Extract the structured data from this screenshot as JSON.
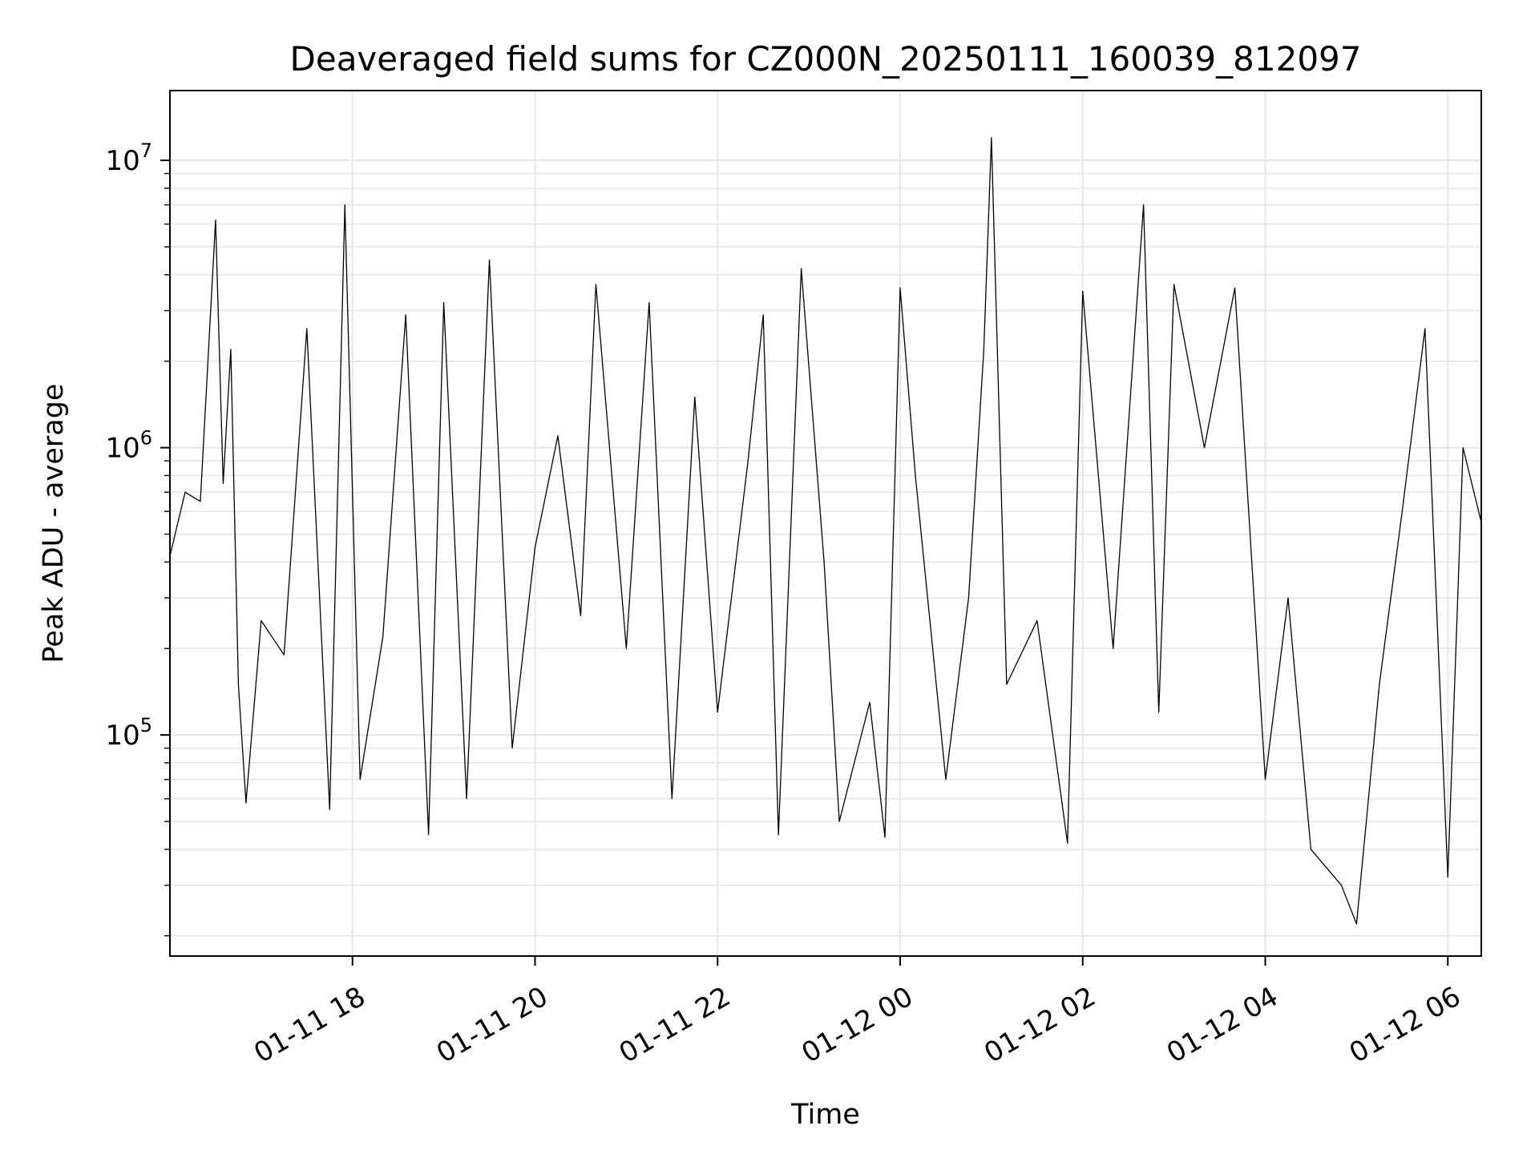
{
  "chart_data": {
    "type": "line",
    "title": "Deaveraged field sums for CZ000N_20250111_160039_812097",
    "xlabel": "Time",
    "ylabel": "Peak ADU - average",
    "yscale": "log",
    "xlim": [
      "2025-01-11 16:00",
      "2025-01-12 06:22"
    ],
    "ylim": [
      17000,
      17500000
    ],
    "grid": true,
    "x_ticks": [
      {
        "time": "2025-01-11 18:00",
        "label": "01-11 18"
      },
      {
        "time": "2025-01-11 20:00",
        "label": "01-11 20"
      },
      {
        "time": "2025-01-11 22:00",
        "label": "01-11 22"
      },
      {
        "time": "2025-01-12 00:00",
        "label": "01-12 00"
      },
      {
        "time": "2025-01-12 02:00",
        "label": "01-12 02"
      },
      {
        "time": "2025-01-12 04:00",
        "label": "01-12 04"
      },
      {
        "time": "2025-01-12 06:00",
        "label": "01-12 06"
      }
    ],
    "y_ticks": [
      {
        "value": 100000,
        "base": "10",
        "exp": "5"
      },
      {
        "value": 1000000,
        "base": "10",
        "exp": "6"
      },
      {
        "value": 10000000,
        "base": "10",
        "exp": "7"
      }
    ],
    "series": [
      {
        "line_color": "#000000",
        "points": [
          [
            "2025-01-11 16:00",
            420000
          ],
          [
            "2025-01-11 16:10",
            700000
          ],
          [
            "2025-01-11 16:20",
            650000
          ],
          [
            "2025-01-11 16:30",
            6200000
          ],
          [
            "2025-01-11 16:35",
            750000
          ],
          [
            "2025-01-11 16:40",
            2200000
          ],
          [
            "2025-01-11 16:45",
            150000
          ],
          [
            "2025-01-11 16:50",
            58000
          ],
          [
            "2025-01-11 17:00",
            250000
          ],
          [
            "2025-01-11 17:15",
            190000
          ],
          [
            "2025-01-11 17:30",
            2600000
          ],
          [
            "2025-01-11 17:45",
            55000
          ],
          [
            "2025-01-11 17:55",
            7000000
          ],
          [
            "2025-01-11 18:05",
            70000
          ],
          [
            "2025-01-11 18:20",
            220000
          ],
          [
            "2025-01-11 18:35",
            2900000
          ],
          [
            "2025-01-11 18:50",
            45000
          ],
          [
            "2025-01-11 19:00",
            3200000
          ],
          [
            "2025-01-11 19:15",
            60000
          ],
          [
            "2025-01-11 19:30",
            4500000
          ],
          [
            "2025-01-11 19:45",
            90000
          ],
          [
            "2025-01-11 20:00",
            450000
          ],
          [
            "2025-01-11 20:15",
            1100000
          ],
          [
            "2025-01-11 20:30",
            260000
          ],
          [
            "2025-01-11 20:40",
            3700000
          ],
          [
            "2025-01-11 21:00",
            200000
          ],
          [
            "2025-01-11 21:15",
            3200000
          ],
          [
            "2025-01-11 21:30",
            60000
          ],
          [
            "2025-01-11 21:45",
            1500000
          ],
          [
            "2025-01-11 22:00",
            120000
          ],
          [
            "2025-01-11 22:20",
            900000
          ],
          [
            "2025-01-11 22:30",
            2900000
          ],
          [
            "2025-01-11 22:40",
            45000
          ],
          [
            "2025-01-11 22:55",
            4200000
          ],
          [
            "2025-01-11 23:10",
            400000
          ],
          [
            "2025-01-11 23:20",
            50000
          ],
          [
            "2025-01-11 23:40",
            130000
          ],
          [
            "2025-01-11 23:50",
            44000
          ],
          [
            "2025-01-12 00:00",
            3600000
          ],
          [
            "2025-01-12 00:10",
            800000
          ],
          [
            "2025-01-12 00:30",
            70000
          ],
          [
            "2025-01-12 00:45",
            300000
          ],
          [
            "2025-01-12 00:55",
            2200000
          ],
          [
            "2025-01-12 01:00",
            12000000
          ],
          [
            "2025-01-12 01:10",
            150000
          ],
          [
            "2025-01-12 01:30",
            250000
          ],
          [
            "2025-01-12 01:50",
            42000
          ],
          [
            "2025-01-12 02:00",
            3500000
          ],
          [
            "2025-01-12 02:20",
            200000
          ],
          [
            "2025-01-12 02:40",
            7000000
          ],
          [
            "2025-01-12 02:50",
            120000
          ],
          [
            "2025-01-12 03:00",
            3700000
          ],
          [
            "2025-01-12 03:20",
            1000000
          ],
          [
            "2025-01-12 03:40",
            3600000
          ],
          [
            "2025-01-12 04:00",
            70000
          ],
          [
            "2025-01-12 04:15",
            300000
          ],
          [
            "2025-01-12 04:30",
            40000
          ],
          [
            "2025-01-12 04:50",
            30000
          ],
          [
            "2025-01-12 05:00",
            22000
          ],
          [
            "2025-01-12 05:15",
            150000
          ],
          [
            "2025-01-12 05:30",
            600000
          ],
          [
            "2025-01-12 05:45",
            2600000
          ],
          [
            "2025-01-12 06:00",
            32000
          ],
          [
            "2025-01-12 06:10",
            1000000
          ],
          [
            "2025-01-12 06:22",
            550000
          ]
        ]
      }
    ]
  }
}
